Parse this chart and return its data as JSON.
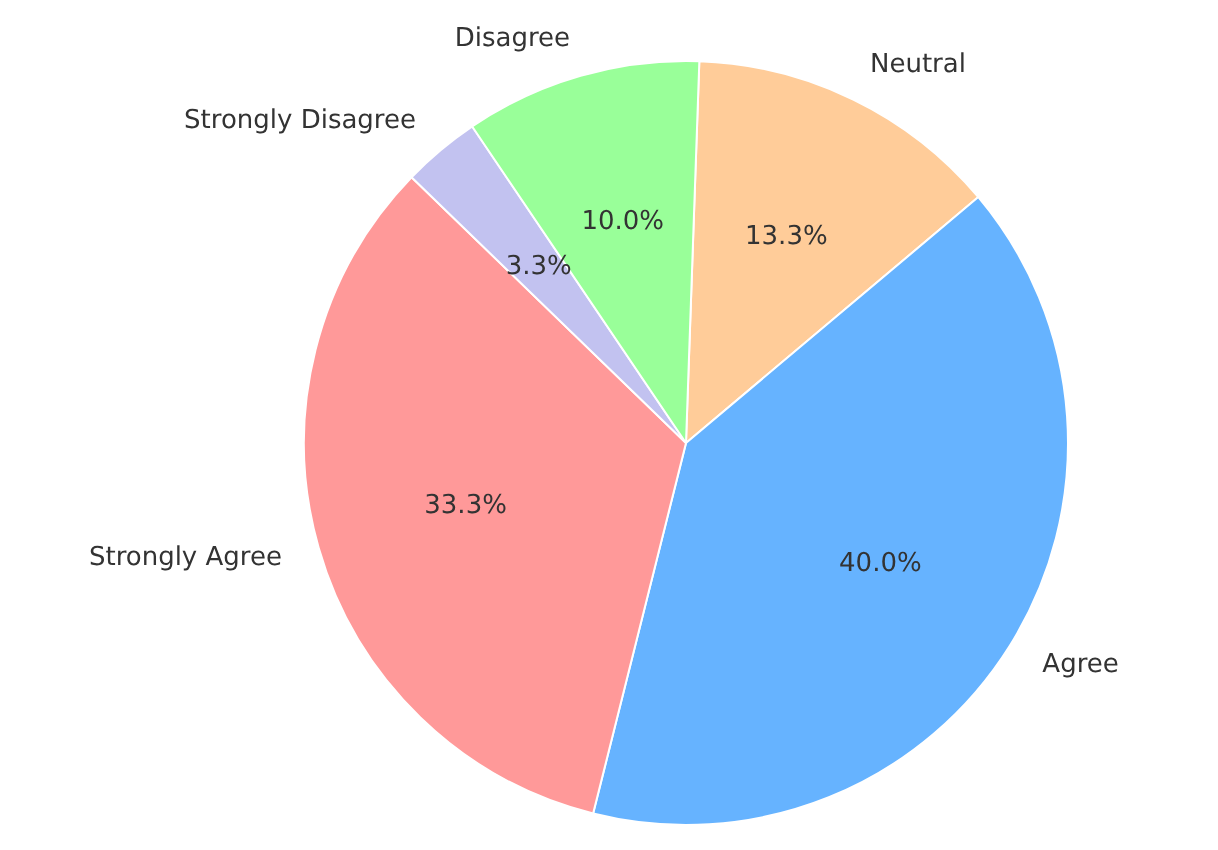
{
  "chart_data": {
    "type": "pie",
    "categories": [
      "Neutral",
      "Agree",
      "Strongly Agree",
      "Strongly Disagree",
      "Disagree"
    ],
    "values": [
      13.3,
      40.0,
      33.3,
      3.3,
      10.0
    ],
    "colors": [
      "#ffcc99",
      "#66b3ff",
      "#ff9999",
      "#c2c2f0",
      "#99ff99"
    ],
    "value_labels": [
      "13.3%",
      "40.0%",
      "33.3%",
      "3.3%",
      "10.0%"
    ],
    "legend": false
  }
}
